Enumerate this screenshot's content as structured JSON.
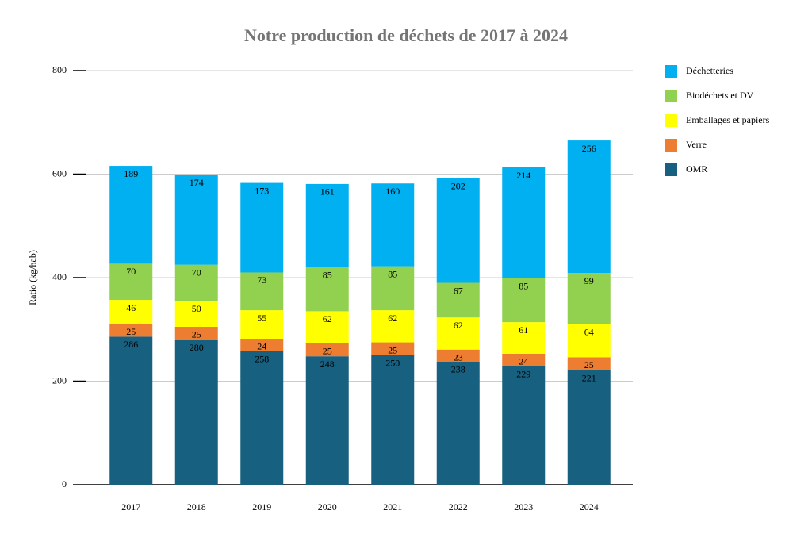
{
  "chart_data": {
    "type": "stacked_bar",
    "title": "Notre production de déchets de 2017 à 2024",
    "y_label": "Ratio (kg/hab)",
    "categories": [
      "2017",
      "2018",
      "2019",
      "2020",
      "2021",
      "2022",
      "2023",
      "2024"
    ],
    "series": [
      {
        "name": "OMR",
        "color": "#17607f",
        "values": [
          286,
          280,
          258,
          248,
          250,
          238,
          229,
          221
        ]
      },
      {
        "name": "Verre",
        "color": "#ed7d31",
        "values": [
          25,
          25,
          24,
          25,
          25,
          23,
          24,
          25
        ]
      },
      {
        "name": "Emballages et papiers",
        "color": "#ffff00",
        "values": [
          46,
          50,
          55,
          62,
          62,
          62,
          61,
          64
        ]
      },
      {
        "name": "Biodéchets et DV",
        "color": "#92d050",
        "values": [
          70,
          70,
          73,
          85,
          85,
          67,
          85,
          99
        ]
      },
      {
        "name": "Déchetteries",
        "color": "#00b0f0",
        "values": [
          189,
          174,
          173,
          161,
          160,
          202,
          214,
          256
        ]
      }
    ],
    "ylim": [
      0,
      800
    ],
    "yticks": [
      0,
      200,
      400,
      600,
      800
    ],
    "grid": true,
    "legend": "right"
  }
}
